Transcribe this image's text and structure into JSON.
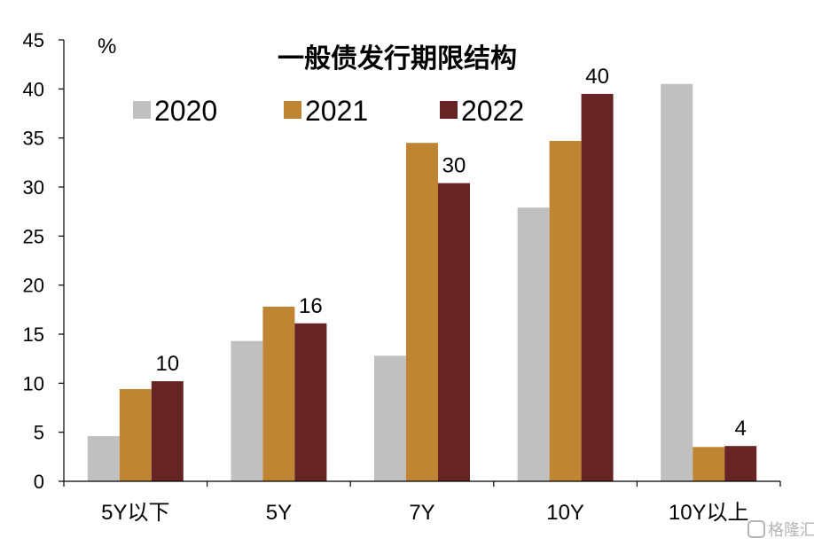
{
  "chart_data": {
    "type": "bar",
    "title": "一般债发行期限结构",
    "unit": "%",
    "categories": [
      "5Y以下",
      "5Y",
      "7Y",
      "10Y",
      "10Y以上"
    ],
    "series": [
      {
        "name": "2020",
        "values": [
          4.6,
          14.3,
          12.8,
          27.9,
          40.5
        ],
        "color": "#c0c0c0"
      },
      {
        "name": "2021",
        "values": [
          9.4,
          17.8,
          34.5,
          34.7,
          3.5
        ],
        "color": "#c08533"
      },
      {
        "name": "2022",
        "values": [
          10.2,
          16.1,
          30.4,
          39.5,
          3.6
        ],
        "color": "#662425"
      }
    ],
    "ylim": [
      0,
      45
    ],
    "yticks": [
      0,
      5,
      10,
      15,
      20,
      25,
      30,
      35,
      40,
      45
    ],
    "data_labels": [
      {
        "text": "10",
        "series": "2022",
        "category": "5Y以下"
      },
      {
        "text": "16",
        "series": "2022",
        "category": "5Y"
      },
      {
        "text": "30",
        "series": "2022",
        "category": "7Y"
      },
      {
        "text": "40",
        "series": "2022",
        "category": "10Y"
      },
      {
        "text": "4",
        "series": "2022",
        "category": "10Y以上"
      }
    ],
    "legend_position": "top-left",
    "grid": false
  },
  "watermark": {
    "text": "格隆汇"
  }
}
